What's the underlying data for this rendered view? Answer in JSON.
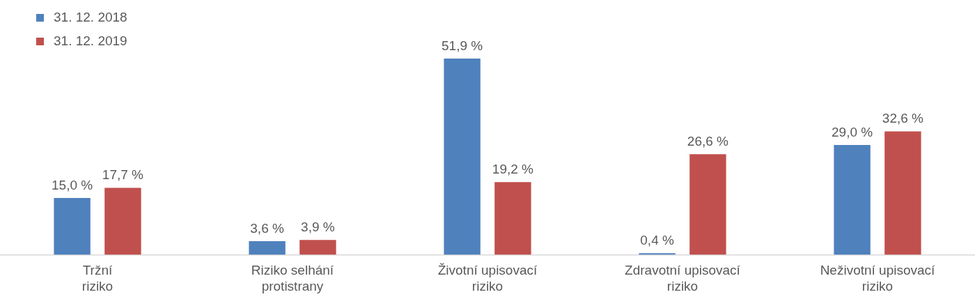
{
  "chart_data": {
    "type": "bar",
    "categories": [
      "Tržní riziko",
      "Riziko selhání protistrany",
      "Životní upisovací riziko",
      "Zdravotní upisovací riziko",
      "Neživotní upisovací riziko"
    ],
    "series": [
      {
        "name": "31. 12. 2018",
        "color": "#4f81bd",
        "values": [
          15.0,
          3.6,
          51.9,
          0.4,
          29.0
        ],
        "value_labels": [
          "15,0 %",
          "3,6 %",
          "51,9 %",
          "0,4 %",
          "29,0 %"
        ]
      },
      {
        "name": "31. 12. 2019",
        "color": "#c0504d",
        "values": [
          17.7,
          3.9,
          19.2,
          26.6,
          32.6
        ],
        "value_labels": [
          "17,7 %",
          "3,9 %",
          "19,2 %",
          "26,6 %",
          "32,6 %"
        ]
      }
    ],
    "legend": "top left",
    "grid": false
  }
}
